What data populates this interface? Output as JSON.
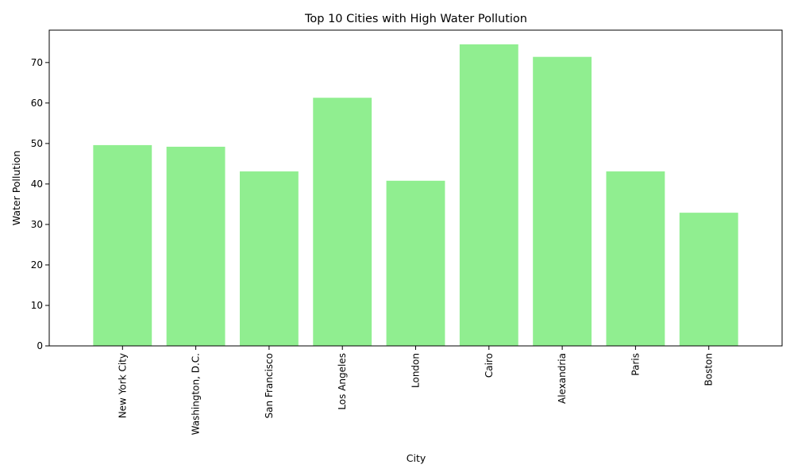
{
  "chart_data": {
    "type": "bar",
    "title": "Top 10 Cities with High Water Pollution",
    "xlabel": "City",
    "ylabel": "Water Pollution",
    "categories": [
      "New York City",
      "Washington, D.C.",
      "San Francisco",
      "Los Angeles",
      "London",
      "Cairo",
      "Alexandria",
      "Paris",
      "Boston"
    ],
    "values": [
      49.6,
      49.2,
      43.1,
      61.3,
      40.8,
      74.5,
      71.4,
      43.1,
      32.9
    ],
    "ylim": [
      0,
      78
    ],
    "yticks": [
      0,
      10,
      20,
      30,
      40,
      50,
      60,
      70
    ],
    "grid": false,
    "legend": "none",
    "bar_color": "#90ee90"
  }
}
